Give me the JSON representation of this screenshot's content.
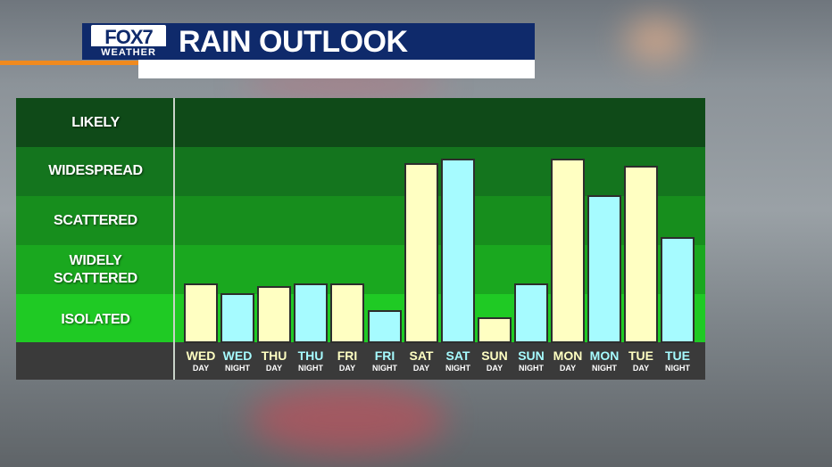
{
  "header": {
    "logo_top": "FOX7",
    "logo_bottom": "WEATHER",
    "title": "RAIN OUTLOOK"
  },
  "colors": {
    "day_bar": "#ffffc2",
    "night_bar": "#a6fbff",
    "header_navy": "#0f2a6b",
    "accent_orange": "#f08a1e"
  },
  "chart_data": {
    "type": "bar",
    "title": "RAIN OUTLOOK",
    "y_levels": [
      "ISOLATED",
      "WIDELY SCATTERED",
      "SCATTERED",
      "WIDESPREAD",
      "LIKELY"
    ],
    "ylim": [
      0,
      5
    ],
    "categories": [
      {
        "day": "WED",
        "time": "DAY"
      },
      {
        "day": "WED",
        "time": "NIGHT"
      },
      {
        "day": "THU",
        "time": "DAY"
      },
      {
        "day": "THU",
        "time": "NIGHT"
      },
      {
        "day": "FRI",
        "time": "DAY"
      },
      {
        "day": "FRI",
        "time": "NIGHT"
      },
      {
        "day": "SAT",
        "time": "DAY"
      },
      {
        "day": "SAT",
        "time": "NIGHT"
      },
      {
        "day": "SUN",
        "time": "DAY"
      },
      {
        "day": "SUN",
        "time": "NIGHT"
      },
      {
        "day": "MON",
        "time": "DAY"
      },
      {
        "day": "MON",
        "time": "NIGHT"
      },
      {
        "day": "TUE",
        "time": "DAY"
      },
      {
        "day": "TUE",
        "time": "NIGHT"
      }
    ],
    "values": [
      1.2,
      1.0,
      1.15,
      1.2,
      1.2,
      0.65,
      3.65,
      3.75,
      0.5,
      1.2,
      3.75,
      3.0,
      3.6,
      2.15
    ]
  }
}
